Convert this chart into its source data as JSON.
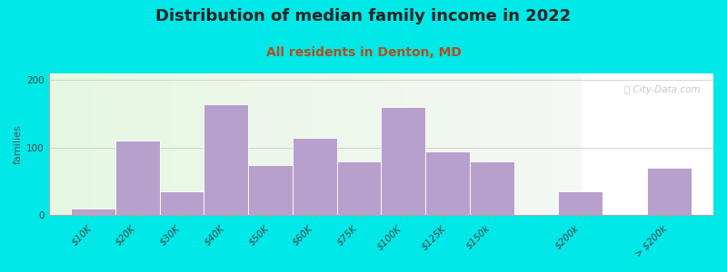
{
  "title": "Distribution of median family income in 2022",
  "subtitle": "All residents in Denton, MD",
  "ylabel": "families",
  "categories": [
    "$10K",
    "$20K",
    "$30K",
    "$40K",
    "$50K",
    "$60K",
    "$75K",
    "$100K",
    "$125K",
    "$150k",
    "$200k",
    "> $200k"
  ],
  "values": [
    10,
    110,
    35,
    165,
    75,
    115,
    80,
    160,
    95,
    80,
    35,
    70
  ],
  "bar_widths": [
    1,
    1,
    1,
    1,
    1,
    1,
    1,
    1,
    1,
    1,
    1,
    1
  ],
  "bar_gaps": [
    0,
    0,
    0,
    0,
    0,
    0,
    0,
    0,
    0,
    0,
    1,
    1
  ],
  "bar_color": "#b8a0cc",
  "bar_edge_color": "#ffffff",
  "background_outer": "#00e8e8",
  "title_fontsize": 13,
  "subtitle_fontsize": 10,
  "title_color": "#222222",
  "subtitle_color": "#b05020",
  "ylabel_fontsize": 8,
  "tick_fontsize": 7.5,
  "ylim": [
    0,
    210
  ],
  "yticks": [
    0,
    100,
    200
  ],
  "watermark": "ⓘ City-Data.com",
  "watermark_color": "#bbbbbb"
}
